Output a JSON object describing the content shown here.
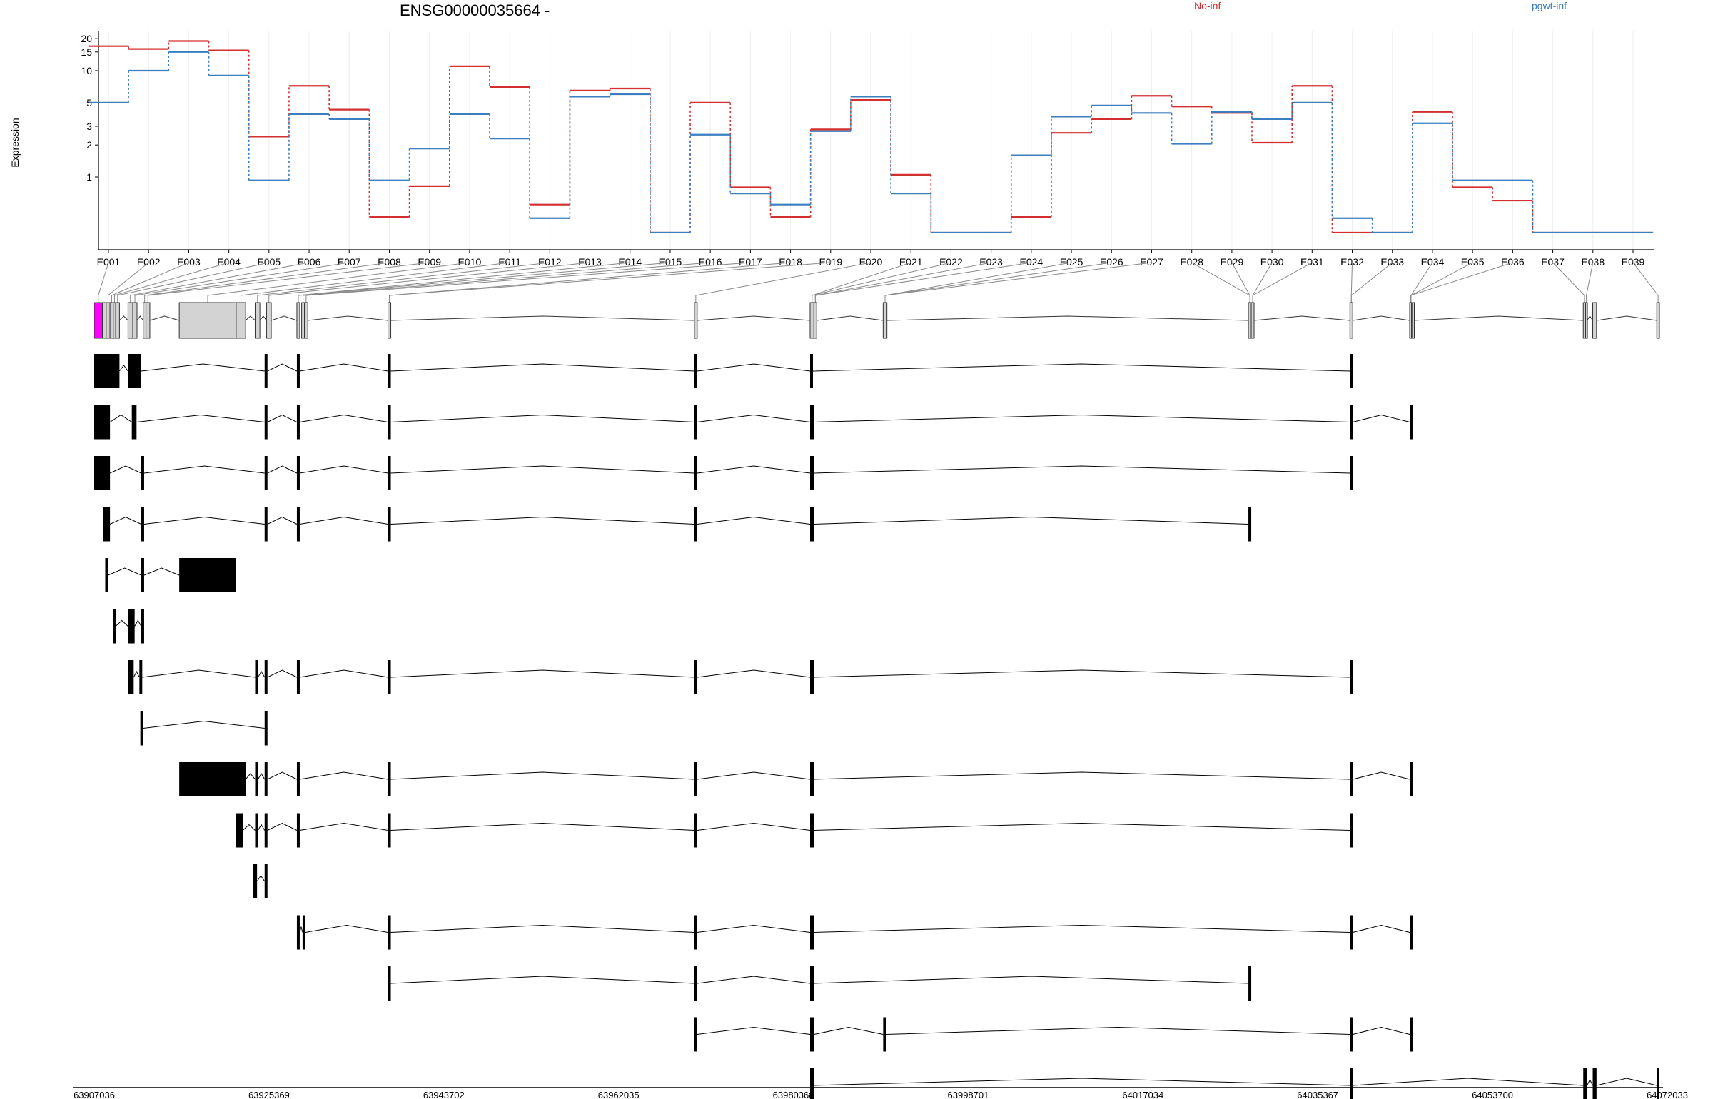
{
  "chart_data": {
    "type": "line",
    "title": "ENSG00000035664 -",
    "ylabel": "Expression",
    "xlabel": "",
    "y_scale": "log",
    "y_ticks": [
      1,
      2,
      3,
      5,
      10,
      15,
      20
    ],
    "ylim": [
      0.22,
      22
    ],
    "grid": "vertical",
    "legend_position": "top-right",
    "categories": [
      "E001",
      "E002",
      "E003",
      "E004",
      "E005",
      "E006",
      "E007",
      "E008",
      "E009",
      "E010",
      "E011",
      "E012",
      "E013",
      "E014",
      "E015",
      "E016",
      "E017",
      "E018",
      "E019",
      "E020",
      "E021",
      "E022",
      "E023",
      "E024",
      "E025",
      "E026",
      "E027",
      "E028",
      "E029",
      "E030",
      "E031",
      "E032",
      "E033",
      "E034",
      "E035",
      "E036",
      "E037",
      "E038",
      "E039"
    ],
    "series": [
      {
        "name": "No-inf",
        "color": "#d32f2f",
        "values": [
          17,
          16,
          19,
          15.5,
          2.4,
          7.2,
          4.3,
          0.42,
          0.82,
          11,
          7,
          0.55,
          6.5,
          6.8,
          0.3,
          5,
          0.8,
          0.42,
          2.8,
          5.3,
          1.05,
          0.3,
          0.3,
          0.42,
          2.6,
          3.5,
          5.8,
          4.6,
          4,
          2.1,
          7.2,
          0.3,
          0.3,
          4.1,
          0.8,
          0.6,
          0.3,
          0.3,
          0.3
        ]
      },
      {
        "name": "pgwt-inf",
        "color": "#3a7ebf",
        "values": [
          5,
          10,
          15,
          9,
          0.93,
          3.9,
          3.5,
          0.93,
          1.85,
          3.9,
          2.3,
          0.41,
          5.7,
          6,
          0.3,
          2.5,
          0.7,
          0.55,
          2.7,
          5.7,
          0.7,
          0.3,
          0.3,
          1.6,
          3.7,
          4.7,
          4,
          2.05,
          4.1,
          3.5,
          5,
          0.41,
          0.3,
          3.2,
          0.93,
          0.93,
          0.3,
          0.3,
          0.3
        ]
      }
    ],
    "genomic_axis": {
      "ticks": [
        "63907036",
        "63925369",
        "63943702",
        "63962035",
        "63980368",
        "63998701",
        "64017034",
        "64035367",
        "64053700",
        "64072033"
      ],
      "start": 63907036,
      "end": 64072033
    },
    "exon_bins": [
      [
        63907036,
        63907900
      ],
      [
        63907900,
        63908300
      ],
      [
        63908300,
        63908700
      ],
      [
        63908700,
        63909050
      ],
      [
        63909050,
        63909300
      ],
      [
        63909300,
        63909700
      ],
      [
        63910600,
        63911100
      ],
      [
        63911100,
        63911550
      ],
      [
        63912200,
        63912500
      ],
      [
        63912500,
        63912900
      ],
      [
        63916000,
        63922000
      ],
      [
        63922000,
        63923000
      ],
      [
        63924000,
        63924500
      ],
      [
        63925200,
        63925700
      ],
      [
        63928400,
        63928700
      ],
      [
        63928900,
        63929200
      ],
      [
        63929200,
        63929550
      ],
      [
        63938000,
        63938300
      ],
      [
        63970300,
        63970600
      ],
      [
        63982500,
        63982900
      ],
      [
        63982900,
        63983200
      ],
      [
        63990200,
        63990600
      ],
      [
        64028700,
        64029000
      ],
      [
        64029000,
        64029300
      ],
      [
        64039400,
        64039700
      ],
      [
        64045700,
        64046000
      ],
      [
        64045700,
        64045900
      ],
      [
        64045900,
        64046000
      ],
      [
        64046000,
        64046100
      ],
      [
        64064000,
        64064250
      ],
      [
        64064250,
        64064400
      ],
      [
        64065000,
        64065400
      ],
      [
        64071750,
        64072033
      ]
    ],
    "exon_links": [
      0,
      2,
      3,
      4,
      5,
      6,
      7,
      8,
      9,
      10,
      11,
      12,
      13,
      14,
      14,
      15,
      16,
      17,
      17,
      18,
      19,
      19,
      20,
      20,
      21,
      21,
      21,
      22,
      22,
      23,
      23,
      24,
      24,
      25,
      25,
      26,
      29,
      30,
      32
    ],
    "highlight_bin": 0,
    "transcripts": [
      [
        [
          63907036,
          63909700
        ],
        [
          63910600,
          63912000
        ],
        [
          63925000,
          63925300
        ],
        [
          63928400,
          63928700
        ],
        [
          63938000,
          63938300
        ],
        [
          63970300,
          63970600
        ],
        [
          63982500,
          63982800
        ],
        [
          64039400,
          64039700
        ]
      ],
      [
        [
          63907036,
          63908700
        ],
        [
          63911000,
          63911500
        ],
        [
          63925000,
          63925300
        ],
        [
          63928400,
          63928700
        ],
        [
          63938000,
          63938300
        ],
        [
          63970300,
          63970600
        ],
        [
          63982500,
          63982900
        ],
        [
          64039400,
          64039700
        ],
        [
          64045700,
          64046000
        ]
      ],
      [
        [
          63907036,
          63908700
        ],
        [
          63912000,
          63912300
        ],
        [
          63925000,
          63925300
        ],
        [
          63928400,
          63928700
        ],
        [
          63938000,
          63938300
        ],
        [
          63970300,
          63970600
        ],
        [
          63982500,
          63982900
        ],
        [
          64039400,
          64039700
        ]
      ],
      [
        [
          63908000,
          63908700
        ],
        [
          63912000,
          63912300
        ],
        [
          63925000,
          63925300
        ],
        [
          63928400,
          63928700
        ],
        [
          63938000,
          63938300
        ],
        [
          63970300,
          63970600
        ],
        [
          63982500,
          63982900
        ],
        [
          64028700,
          64029000
        ]
      ],
      [
        [
          63908200,
          63908500
        ],
        [
          63912000,
          63912300
        ],
        [
          63916000,
          63922000
        ]
      ],
      [
        [
          63909000,
          63909300
        ],
        [
          63910600,
          63911300
        ],
        [
          63912000,
          63912300
        ]
      ],
      [
        [
          63910600,
          63911200
        ],
        [
          63911800,
          63912100
        ],
        [
          63924000,
          63924300
        ],
        [
          63925000,
          63925300
        ],
        [
          63928400,
          63928700
        ],
        [
          63938000,
          63938300
        ],
        [
          63970300,
          63970600
        ],
        [
          63982500,
          63982900
        ],
        [
          64039400,
          64039700
        ]
      ],
      [
        [
          63911900,
          63912200
        ],
        [
          63925000,
          63925300
        ]
      ],
      [
        [
          63916000,
          63923000
        ],
        [
          63924000,
          63924300
        ],
        [
          63925000,
          63925300
        ],
        [
          63928400,
          63928700
        ],
        [
          63938000,
          63938300
        ],
        [
          63970300,
          63970600
        ],
        [
          63982500,
          63982900
        ],
        [
          64039400,
          64039700
        ],
        [
          64045700,
          64046000
        ]
      ],
      [
        [
          63922000,
          63922700
        ],
        [
          63924000,
          63924300
        ],
        [
          63925000,
          63925300
        ],
        [
          63928400,
          63928700
        ],
        [
          63938000,
          63938300
        ],
        [
          63970300,
          63970600
        ],
        [
          63982500,
          63982900
        ],
        [
          64039400,
          64039700
        ]
      ],
      [
        [
          63923800,
          63924200
        ],
        [
          63925000,
          63925300
        ]
      ],
      [
        [
          63928400,
          63928700
        ],
        [
          63929000,
          63929300
        ],
        [
          63938000,
          63938300
        ],
        [
          63970300,
          63970600
        ],
        [
          63982500,
          63982900
        ],
        [
          64039400,
          64039700
        ],
        [
          64045700,
          64046000
        ]
      ],
      [
        [
          63938000,
          63938300
        ],
        [
          63970300,
          63970600
        ],
        [
          63982500,
          63982900
        ],
        [
          64028700,
          64029000
        ]
      ],
      [
        [
          63970300,
          63970600
        ],
        [
          63982500,
          63982900
        ],
        [
          63990200,
          63990500
        ],
        [
          64039400,
          64039700
        ],
        [
          64045700,
          64046000
        ]
      ],
      [
        [
          63982500,
          63982900
        ],
        [
          64039400,
          64039700
        ],
        [
          64064000,
          64064400
        ],
        [
          64065000,
          64065400
        ],
        [
          64071750,
          64072033
        ]
      ]
    ]
  }
}
